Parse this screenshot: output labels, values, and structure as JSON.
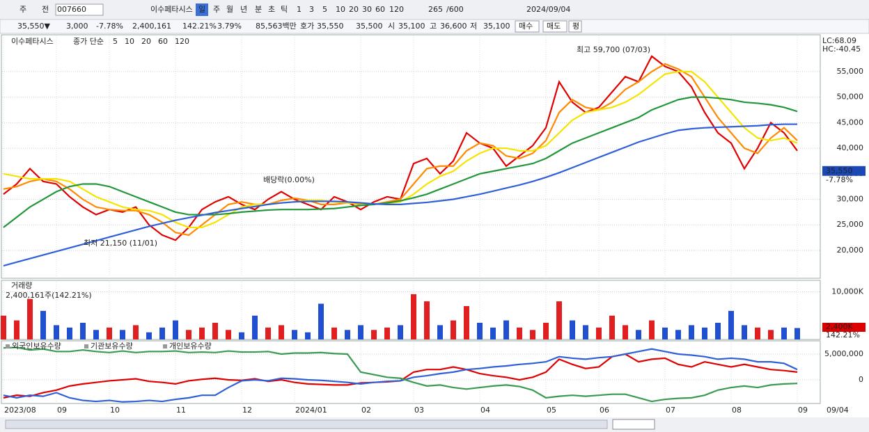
{
  "toolbar": {
    "items": [
      "주",
      "전",
      "007660",
      "이수페타시스",
      "일",
      "주",
      "월",
      "년",
      "분",
      "초",
      "틱",
      "1",
      "3",
      "5",
      "10",
      "20",
      "30",
      "60",
      "120",
      "265",
      "/600",
      "2024/09/04"
    ]
  },
  "infobar": {
    "items": [
      "35,550▼",
      "3,000",
      "-7.78%",
      "2,400,161",
      "142.21%",
      "3.79%",
      "85,563백만",
      "호가",
      "35,550",
      "35,500",
      "시",
      "35,100",
      "고",
      "36,600",
      "저",
      "35,100",
      "매수",
      "매도",
      "평"
    ]
  },
  "chart_data": [
    {
      "type": "line",
      "title": "이수페타시스",
      "subtitle": "종가 단순",
      "series": [
        {
          "name": "5",
          "color": "#e00000",
          "values": [
            31000,
            33000,
            36000,
            33500,
            33000,
            30500,
            28500,
            27000,
            28000,
            27500,
            28500,
            25000,
            23000,
            22000,
            24500,
            28000,
            29500,
            30500,
            29000,
            28000,
            30000,
            31500,
            30000,
            29000,
            28000,
            30500,
            29500,
            28000,
            29500,
            30500,
            30000,
            37000,
            38000,
            35000,
            37500,
            43000,
            41000,
            40000,
            36500,
            38500,
            40500,
            44000,
            53000,
            49000,
            47000,
            48000,
            51000,
            54000,
            53000,
            58000,
            56000,
            55000,
            52000,
            47000,
            43000,
            41000,
            36000,
            40000,
            45000,
            43000,
            39500
          ]
        },
        {
          "name": "10",
          "color": "#ff8a00",
          "values": [
            32000,
            32500,
            33500,
            34000,
            33500,
            32000,
            30000,
            28500,
            28000,
            27800,
            27800,
            27000,
            25500,
            23500,
            23000,
            25000,
            27000,
            29000,
            29500,
            29000,
            29000,
            29800,
            30200,
            29800,
            29000,
            29000,
            29300,
            29000,
            29000,
            29500,
            30000,
            33000,
            36000,
            36500,
            36500,
            39500,
            41000,
            40500,
            38500,
            38000,
            39000,
            41500,
            47000,
            49500,
            48000,
            47500,
            49000,
            51500,
            53000,
            55000,
            56500,
            55500,
            54000,
            50000,
            46000,
            43000,
            40000,
            39000,
            42000,
            44000,
            41500
          ]
        },
        {
          "name": "20",
          "color": "#f5e400",
          "values": [
            35000,
            34500,
            34000,
            34000,
            34000,
            33500,
            32000,
            30500,
            29500,
            28500,
            28000,
            27800,
            27000,
            25500,
            24500,
            24500,
            25500,
            27000,
            28500,
            29000,
            29000,
            29300,
            29500,
            29800,
            29800,
            29500,
            29300,
            29200,
            29100,
            29200,
            29500,
            31000,
            33000,
            34500,
            35500,
            37500,
            39000,
            40000,
            40000,
            39500,
            39500,
            40500,
            43000,
            45500,
            47000,
            47500,
            48000,
            49000,
            50500,
            52500,
            54500,
            55000,
            55000,
            53000,
            50000,
            47000,
            44000,
            42000,
            41500,
            42000,
            41000
          ]
        },
        {
          "name": "60",
          "color": "#22963a",
          "values": [
            24500,
            26500,
            28500,
            30000,
            31500,
            32500,
            33000,
            33000,
            32500,
            31500,
            30500,
            29500,
            28500,
            27500,
            27000,
            27000,
            27000,
            27200,
            27500,
            27700,
            27900,
            28000,
            28000,
            28000,
            28100,
            28200,
            28500,
            28800,
            29000,
            29300,
            29700,
            30300,
            31000,
            32000,
            33000,
            34000,
            35000,
            35500,
            36000,
            36500,
            37000,
            38000,
            39500,
            41000,
            42000,
            43000,
            44000,
            45000,
            46000,
            47500,
            48500,
            49500,
            50000,
            50000,
            49800,
            49500,
            49000,
            48800,
            48500,
            48000,
            47200
          ]
        },
        {
          "name": "120",
          "color": "#2f5fd8",
          "values": [
            17000,
            17700,
            18400,
            19100,
            19800,
            20500,
            21200,
            21900,
            22600,
            23300,
            24000,
            24700,
            25300,
            25900,
            26400,
            26900,
            27400,
            27800,
            28200,
            28600,
            29000,
            29300,
            29500,
            29600,
            29600,
            29600,
            29500,
            29300,
            29100,
            29000,
            29000,
            29200,
            29400,
            29700,
            30000,
            30500,
            31000,
            31600,
            32200,
            32800,
            33500,
            34300,
            35200,
            36200,
            37200,
            38200,
            39200,
            40200,
            41200,
            42000,
            42800,
            43500,
            43800,
            44000,
            44100,
            44200,
            44300,
            44400,
            44600,
            44700,
            44700
          ]
        }
      ],
      "ylim": [
        14550,
        62200
      ],
      "yticks": [
        {
          "value": 20000,
          "label": "20,000"
        },
        {
          "value": 25000,
          "label": "25,000"
        },
        {
          "value": 30000,
          "label": "30,000"
        },
        {
          "value": 35000,
          "label": "35,000"
        },
        {
          "value": 40000,
          "label": "40,000"
        },
        {
          "value": 45000,
          "label": "45,000"
        },
        {
          "value": 50000,
          "label": "50,000"
        },
        {
          "value": 55000,
          "label": "55,000"
        }
      ],
      "grid": true,
      "annotations": [
        "최고 59,700 (07/03)",
        "최저 21,150 (11/01)",
        "배당락(0.00%)"
      ],
      "lc_label": "LC:68.09",
      "hc_label": "HC:-40.45",
      "last": {
        "value": 35550,
        "label": "35,550"
      },
      "last_change": "-7.78%"
    },
    {
      "type": "bar",
      "title": "거래량",
      "subtitle": "2,400,161주(142.21%)",
      "values": [
        5000000,
        4000000,
        8500000,
        6000000,
        3000000,
        2500000,
        3500000,
        2000000,
        2500000,
        2000000,
        3000000,
        1500000,
        2500000,
        4000000,
        2000000,
        2500000,
        3500000,
        2000000,
        1500000,
        5000000,
        2500000,
        3000000,
        2000000,
        1500000,
        7500000,
        2500000,
        2000000,
        3000000,
        2000000,
        2500000,
        3000000,
        9500000,
        8000000,
        3000000,
        4000000,
        7000000,
        3500000,
        2500000,
        4000000,
        2500000,
        2000000,
        3500000,
        8000000,
        4000000,
        3000000,
        2500000,
        5000000,
        3000000,
        2000000,
        4000000,
        2500000,
        2000000,
        3000000,
        2500000,
        3500000,
        6000000,
        3000000,
        2500000,
        2000000,
        2500000,
        2400161
      ],
      "up_color": "#e02020",
      "down_color": "#2050d0",
      "ylim": [
        0,
        12400000
      ],
      "yticks": [
        {
          "value": 10000000,
          "label": "10,000K"
        }
      ],
      "last": {
        "value": 2400161,
        "label": "2,400K"
      },
      "last_ratio": "142.21%"
    },
    {
      "type": "line",
      "categories": [
        "2023/08",
        null,
        null,
        null,
        "09",
        null,
        null,
        null,
        "10",
        null,
        null,
        null,
        null,
        "11",
        null,
        null,
        null,
        null,
        "12",
        null,
        null,
        null,
        "2024/01",
        null,
        null,
        null,
        null,
        "02",
        null,
        null,
        null,
        "03",
        null,
        null,
        null,
        null,
        "04",
        null,
        null,
        null,
        null,
        "05",
        null,
        null,
        null,
        "06",
        null,
        null,
        null,
        null,
        "07",
        null,
        null,
        null,
        null,
        "08",
        null,
        null,
        null,
        null,
        "09"
      ],
      "series": [
        {
          "name": "외국인보유수량",
          "color": "#e00000",
          "values": [
            -3500000,
            -3000000,
            -3200000,
            -2500000,
            -2000000,
            -1200000,
            -800000,
            -500000,
            -200000,
            0,
            200000,
            -300000,
            -500000,
            -800000,
            -200000,
            100000,
            300000,
            0,
            -100000,
            200000,
            -300000,
            0,
            -500000,
            -800000,
            -900000,
            -1000000,
            -1000000,
            -600000,
            -500000,
            -400000,
            -200000,
            1500000,
            2000000,
            2000000,
            2500000,
            2000000,
            1200000,
            800000,
            500000,
            0,
            500000,
            1500000,
            4000000,
            3000000,
            2200000,
            2500000,
            4500000,
            5000000,
            3500000,
            4000000,
            4200000,
            3000000,
            2500000,
            3500000,
            3000000,
            2500000,
            3000000,
            2500000,
            2000000,
            1800000,
            1500000
          ]
        },
        {
          "name": "기관보유수량",
          "color": "#2f5fd8",
          "values": [
            -3000000,
            -3500000,
            -3000000,
            -3200000,
            -2500000,
            -3500000,
            -4000000,
            -4200000,
            -4000000,
            -4300000,
            -4200000,
            -4000000,
            -4200000,
            -3800000,
            -3500000,
            -3000000,
            -3000000,
            -1500000,
            -200000,
            0,
            -200000,
            300000,
            200000,
            0,
            -100000,
            -300000,
            -500000,
            -800000,
            -500000,
            -300000,
            -200000,
            500000,
            800000,
            1200000,
            1500000,
            2000000,
            2200000,
            2500000,
            2700000,
            3000000,
            3200000,
            3500000,
            4500000,
            4200000,
            4000000,
            4300000,
            4500000,
            5000000,
            5500000,
            6000000,
            5500000,
            5000000,
            4800000,
            4500000,
            4000000,
            4200000,
            4000000,
            3500000,
            3500000,
            3200000,
            2000000
          ]
        },
        {
          "name": "개인보유수량",
          "color": "#3a9a50",
          "values": [
            6200000,
            6300000,
            5800000,
            6000000,
            5500000,
            5500000,
            5800000,
            5500000,
            5300000,
            5600000,
            5300000,
            5500000,
            5500000,
            5600000,
            5300000,
            5400000,
            5300000,
            5600000,
            5400000,
            5400000,
            5500000,
            5000000,
            5200000,
            5200000,
            5300000,
            5100000,
            5000000,
            1500000,
            1000000,
            500000,
            300000,
            -500000,
            -1200000,
            -1000000,
            -1500000,
            -1800000,
            -1500000,
            -1200000,
            -1000000,
            -1300000,
            -2000000,
            -3500000,
            -3200000,
            -3000000,
            -3200000,
            -3000000,
            -2800000,
            -2800000,
            -3500000,
            -4200000,
            -3800000,
            -3600000,
            -3500000,
            -3000000,
            -2000000,
            -1500000,
            -1200000,
            -1500000,
            -1000000,
            -800000,
            -700000
          ]
        }
      ],
      "ylim": [
        -4600000,
        7570000
      ],
      "yticks": [
        {
          "value": 5000000,
          "label": "5,000,000"
        },
        0
      ],
      "last_date": "09/04"
    }
  ]
}
